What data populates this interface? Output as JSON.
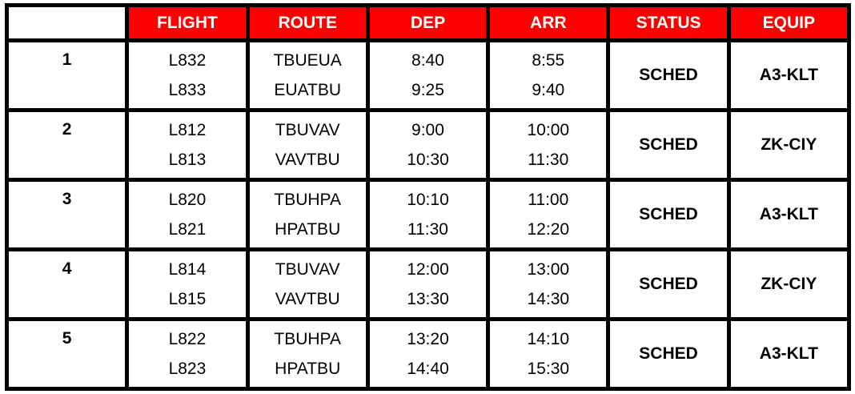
{
  "colors": {
    "header_bg": "#ff0000",
    "header_text": "#ffffff",
    "border": "#000000"
  },
  "headers": [
    "FLIGHT",
    "ROUTE",
    "DEP",
    "ARR",
    "STATUS",
    "EQUIP"
  ],
  "groups": [
    {
      "num": "1",
      "flights": [
        "L832",
        "L833"
      ],
      "routes": [
        "TBUEUA",
        "EUATBU"
      ],
      "dep": [
        "8:40",
        "9:25"
      ],
      "arr": [
        "8:55",
        "9:40"
      ],
      "status": "SCHED",
      "equip": "A3-KLT"
    },
    {
      "num": "2",
      "flights": [
        "L812",
        "L813"
      ],
      "routes": [
        "TBUVAV",
        "VAVTBU"
      ],
      "dep": [
        "9:00",
        "10:30"
      ],
      "arr": [
        "10:00",
        "11:30"
      ],
      "status": "SCHED",
      "equip": "ZK-CIY"
    },
    {
      "num": "3",
      "flights": [
        "L820",
        "L821"
      ],
      "routes": [
        "TBUHPA",
        "HPATBU"
      ],
      "dep": [
        "10:10",
        "11:30"
      ],
      "arr": [
        "11:00",
        "12:20"
      ],
      "status": "SCHED",
      "equip": "A3-KLT"
    },
    {
      "num": "4",
      "flights": [
        "L814",
        "L815"
      ],
      "routes": [
        "TBUVAV",
        "VAVTBU"
      ],
      "dep": [
        "12:00",
        "13:30"
      ],
      "arr": [
        "13:00",
        "14:30"
      ],
      "status": "SCHED",
      "equip": "ZK-CIY"
    },
    {
      "num": "5",
      "flights": [
        "L822",
        "L823"
      ],
      "routes": [
        "TBUHPA",
        "HPATBU"
      ],
      "dep": [
        "13:20",
        "14:40"
      ],
      "arr": [
        "14:10",
        "15:30"
      ],
      "status": "SCHED",
      "equip": "A3-KLT"
    }
  ]
}
